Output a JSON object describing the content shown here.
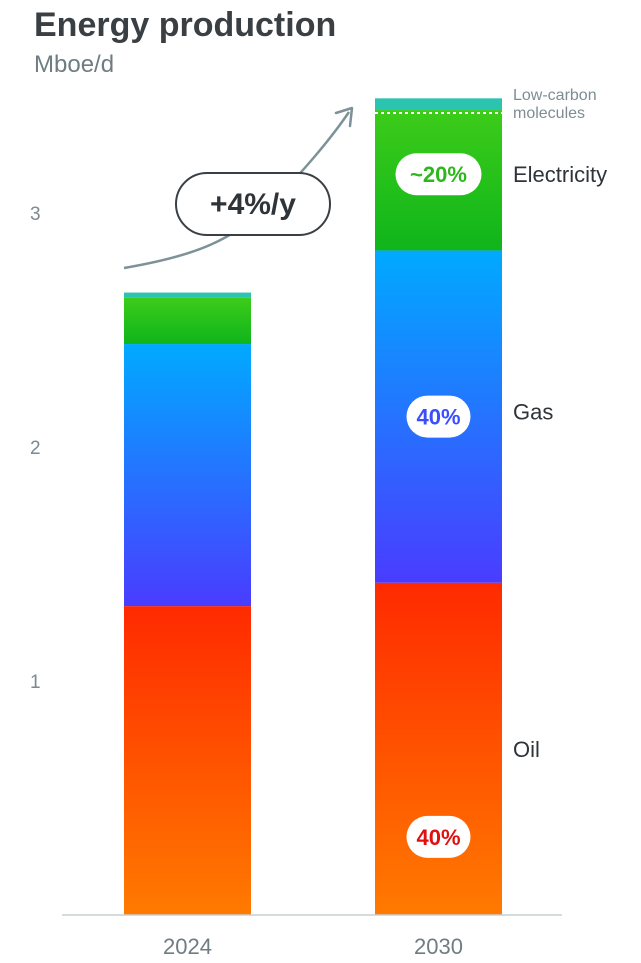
{
  "chart_data": {
    "type": "bar",
    "stacked": true,
    "title": "Energy production",
    "subtitle": "Mboe/d",
    "categories": [
      "2024",
      "2030"
    ],
    "ylim": [
      0,
      3.4
    ],
    "yticks": [
      "1",
      "2",
      "3"
    ],
    "grid": false,
    "series": [
      {
        "name": "Oil",
        "values": [
          1.32,
          1.42
        ],
        "color_top": "#ff2a00",
        "color_bottom": "#ff7a00"
      },
      {
        "name": "Gas",
        "values": [
          1.12,
          1.42
        ],
        "color_top": "#00aaff",
        "color_bottom": "#4a3cff"
      },
      {
        "name": "Electricity",
        "values": [
          0.2,
          0.6
        ],
        "color_top": "#3dcc1a",
        "color_bottom": "#0fb51b"
      },
      {
        "name": "Low-carbon molecules",
        "values": [
          0.02,
          0.05
        ],
        "color_top": "#2bc4b0",
        "color_bottom": "#2bc4b0"
      }
    ],
    "labels": {
      "low_carbon_line1": "Low-carbon",
      "low_carbon_line2": "molecules"
    },
    "badges": [
      {
        "text": "~20%",
        "series": "Electricity",
        "color": "#2bb81a"
      },
      {
        "text": "40%",
        "series": "Gas",
        "color": "#3a4dff"
      },
      {
        "text": "40%",
        "series": "Oil",
        "color": "#e01010"
      }
    ],
    "growth_annotation": "+4%/y"
  }
}
